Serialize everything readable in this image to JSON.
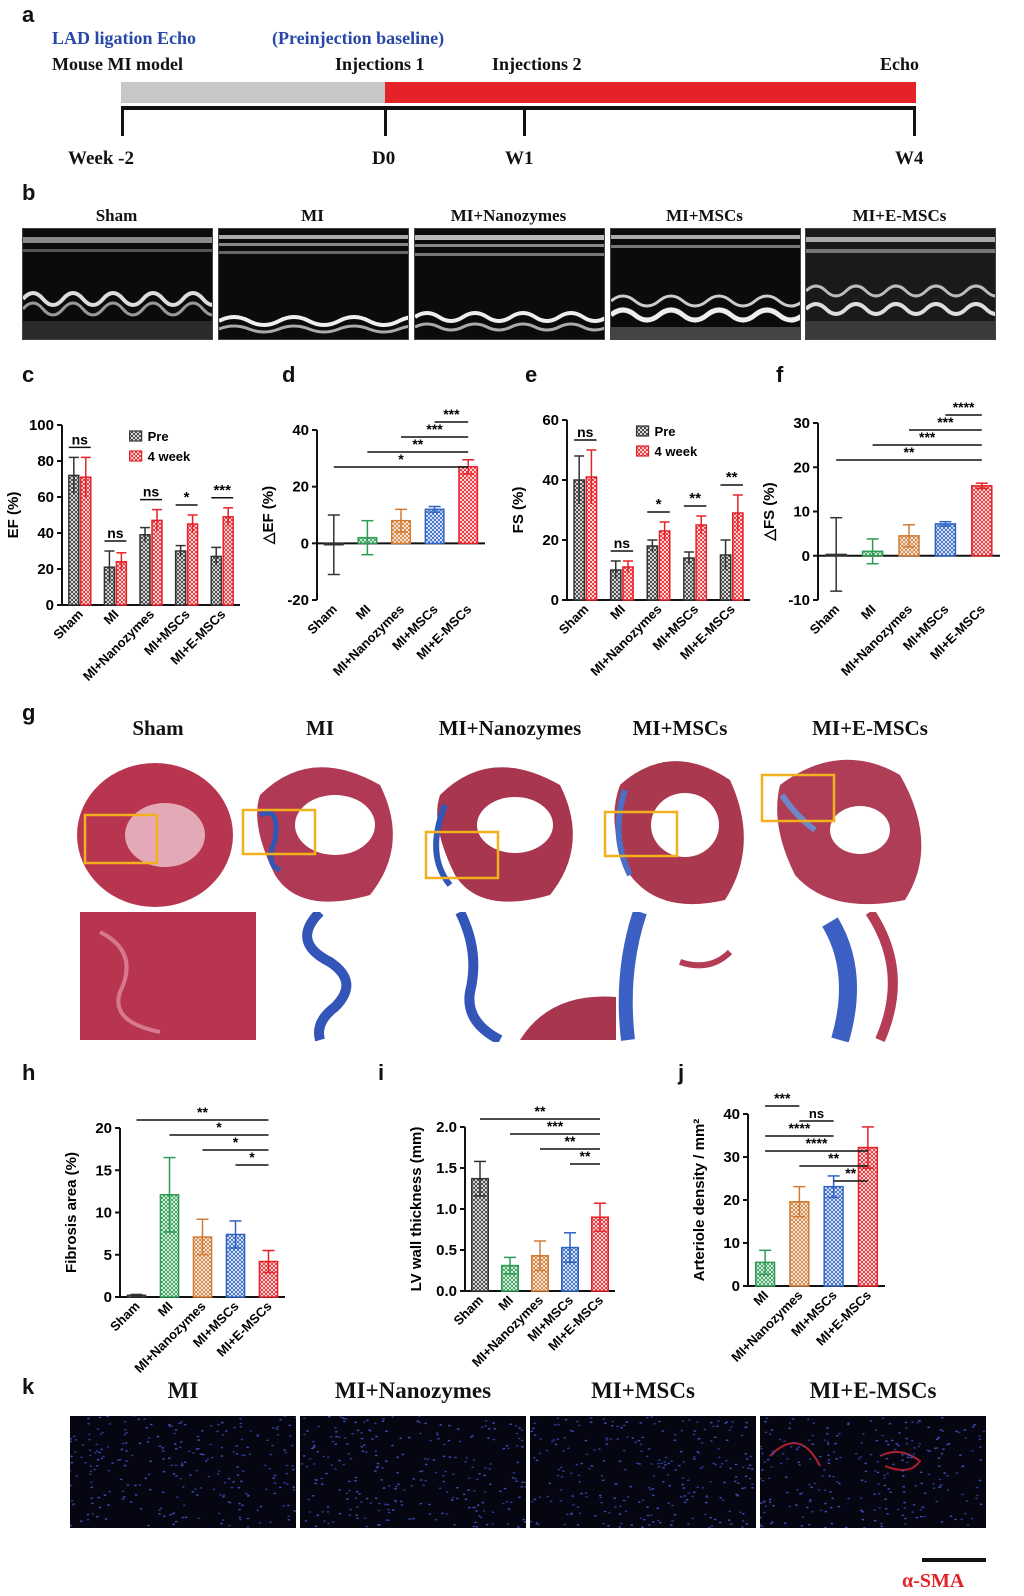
{
  "panel_labels": {
    "a": "a",
    "b": "b",
    "c": "c",
    "d": "d",
    "e": "e",
    "f": "f",
    "g": "g",
    "h": "h",
    "i": "i",
    "j": "j",
    "k": "k"
  },
  "timeline": {
    "top_blue_left": "LAD ligation Echo",
    "top_blue_mid": "(Preinjection baseline)",
    "lbl_model": "Mouse MI model",
    "lbl_inj1": "Injections 1",
    "lbl_inj2": "Injections 2",
    "lbl_echo": "Echo",
    "ticks": [
      "Week -2",
      "D0",
      "W1",
      "W4"
    ],
    "colors": {
      "gray": "#c8c8c8",
      "red": "#e52228"
    }
  },
  "groups5": [
    "Sham",
    "MI",
    "MI+Nanozymes",
    "MI+MSCs",
    "MI+E-MSCs"
  ],
  "groups4": [
    "MI",
    "MI+Nanozymes",
    "MI+MSCs",
    "MI+E-MSCs"
  ],
  "stain_label": "α-SMA",
  "chart_data": [
    {
      "id": "c",
      "type": "bar",
      "categories": [
        "Sham",
        "MI",
        "MI+Nanozymes",
        "MI+MSCs",
        "MI+E-MSCs"
      ],
      "series": [
        {
          "name": "Pre",
          "values": [
            72,
            21,
            39,
            30,
            27
          ],
          "errors": [
            10,
            9,
            4,
            3,
            5
          ],
          "color": "#333333"
        },
        {
          "name": "4 week",
          "values": [
            71,
            24,
            47,
            45,
            49
          ],
          "errors": [
            11,
            5,
            6,
            5,
            5
          ],
          "color": "#e52228"
        }
      ],
      "ylabel": "EF (%)",
      "ylim": [
        0,
        100
      ],
      "yticks": [
        0,
        20,
        40,
        60,
        80,
        100
      ],
      "legend": "top-right",
      "annotations": [
        {
          "text": "ns",
          "cat": 0
        },
        {
          "text": "ns",
          "cat": 1
        },
        {
          "text": "ns",
          "cat": 2
        },
        {
          "text": "*",
          "cat": 3
        },
        {
          "text": "***",
          "cat": 4
        }
      ]
    },
    {
      "id": "d",
      "type": "bar",
      "categories": [
        "Sham",
        "MI",
        "MI+Nanozymes",
        "MI+MSCs",
        "MI+E-MSCs"
      ],
      "values": [
        -0.5,
        2,
        8,
        12,
        27
      ],
      "errors": [
        10.5,
        6,
        4,
        1,
        2.5
      ],
      "colors": [
        "#333333",
        "#2e9b53",
        "#d27b35",
        "#2e63c4",
        "#e52228"
      ],
      "ylabel": "△EF (%)",
      "ylim": [
        -20,
        40
      ],
      "yticks": [
        -20,
        0,
        20,
        40
      ],
      "annotations": [
        {
          "text": "***",
          "from": 3,
          "to": 4
        },
        {
          "text": "***",
          "from": 2,
          "to": 4
        },
        {
          "text": "**",
          "from": 1,
          "to": 4
        },
        {
          "text": "*",
          "from": 0,
          "to": 4
        }
      ]
    },
    {
      "id": "e",
      "type": "bar",
      "categories": [
        "Sham",
        "MI",
        "MI+Nanozymes",
        "MI+MSCs",
        "MI+E-MSCs"
      ],
      "series": [
        {
          "name": "Pre",
          "values": [
            40,
            10,
            18,
            14,
            15
          ],
          "errors": [
            8,
            3,
            2,
            2,
            5
          ],
          "color": "#333333"
        },
        {
          "name": "4 week",
          "values": [
            41,
            11,
            23,
            25,
            29
          ],
          "errors": [
            9,
            2,
            3,
            3,
            6
          ],
          "color": "#e52228"
        }
      ],
      "ylabel": "FS (%)",
      "ylim": [
        0,
        60
      ],
      "yticks": [
        0,
        20,
        40,
        60
      ],
      "legend": "top-right",
      "annotations": [
        {
          "text": "ns",
          "cat": 0
        },
        {
          "text": "ns",
          "cat": 1
        },
        {
          "text": "*",
          "cat": 2
        },
        {
          "text": "**",
          "cat": 3
        },
        {
          "text": "**",
          "cat": 4
        }
      ]
    },
    {
      "id": "f",
      "type": "bar",
      "categories": [
        "Sham",
        "MI",
        "MI+Nanozymes",
        "MI+MSCs",
        "MI+E-MSCs"
      ],
      "values": [
        0.3,
        1,
        4.5,
        7.2,
        15.8
      ],
      "errors": [
        8.3,
        2.8,
        2.5,
        0.5,
        0.6
      ],
      "colors": [
        "#333333",
        "#2e9b53",
        "#d27b35",
        "#2e63c4",
        "#e52228"
      ],
      "ylabel": "△FS (%)",
      "ylim": [
        -10,
        30
      ],
      "yticks": [
        -10,
        0,
        10,
        20,
        30
      ],
      "annotations": [
        {
          "text": "****",
          "from": 3,
          "to": 4
        },
        {
          "text": "***",
          "from": 2,
          "to": 4
        },
        {
          "text": "***",
          "from": 1,
          "to": 4
        },
        {
          "text": "**",
          "from": 0,
          "to": 4
        }
      ]
    },
    {
      "id": "h",
      "type": "bar",
      "categories": [
        "Sham",
        "MI",
        "MI+Nanozymes",
        "MI+MSCs",
        "MI+E-MSCs"
      ],
      "values": [
        0.2,
        12.1,
        7.1,
        7.4,
        4.2
      ],
      "errors": [
        0.1,
        4.4,
        2.1,
        1.6,
        1.3
      ],
      "colors": [
        "#333333",
        "#2e9b53",
        "#d27b35",
        "#2e63c4",
        "#e52228"
      ],
      "ylabel": "Fibrosis area (%)",
      "ylim": [
        0,
        20
      ],
      "yticks": [
        0,
        5,
        10,
        15,
        20
      ],
      "annotations": [
        {
          "text": "**",
          "from": 0,
          "to": 4
        },
        {
          "text": "*",
          "from": 1,
          "to": 4
        },
        {
          "text": "*",
          "from": 2,
          "to": 4
        },
        {
          "text": "*",
          "from": 3,
          "to": 4
        }
      ]
    },
    {
      "id": "i",
      "type": "bar",
      "categories": [
        "Sham",
        "MI",
        "MI+Nanozymes",
        "MI+MSCs",
        "MI+E-MSCs"
      ],
      "values": [
        1.37,
        0.31,
        0.43,
        0.53,
        0.9
      ],
      "errors": [
        0.21,
        0.1,
        0.18,
        0.18,
        0.17
      ],
      "colors": [
        "#333333",
        "#2e9b53",
        "#d27b35",
        "#2e63c4",
        "#e52228"
      ],
      "ylabel": "LV wall thickness (mm)",
      "ylim": [
        0,
        2
      ],
      "yticks": [
        0.0,
        0.5,
        1.0,
        1.5,
        2.0
      ],
      "annotations": [
        {
          "text": "**",
          "from": 0,
          "to": 4
        },
        {
          "text": "***",
          "from": 1,
          "to": 4
        },
        {
          "text": "**",
          "from": 2,
          "to": 4
        },
        {
          "text": "**",
          "from": 3,
          "to": 4
        }
      ]
    },
    {
      "id": "j",
      "type": "bar",
      "categories": [
        "MI",
        "MI+Nanozymes",
        "MI+MSCs",
        "MI+E-MSCs"
      ],
      "values": [
        5.5,
        19.6,
        23.1,
        32.2
      ],
      "errors": [
        2.8,
        3.5,
        2.5,
        4.8
      ],
      "colors": [
        "#2e9b53",
        "#d27b35",
        "#2e63c4",
        "#e52228"
      ],
      "ylabel": "Arteriole density / mm²",
      "ylim": [
        0,
        40
      ],
      "yticks": [
        0,
        10,
        20,
        30,
        40
      ],
      "annotations": [
        {
          "text": "***",
          "from": 0,
          "to": 1
        },
        {
          "text": "ns",
          "from": 1,
          "to": 2
        },
        {
          "text": "****",
          "from": 0,
          "to": 2
        },
        {
          "text": "****",
          "from": 0,
          "to": 3
        },
        {
          "text": "**",
          "from": 1,
          "to": 3
        },
        {
          "text": "**",
          "from": 2,
          "to": 3
        }
      ]
    }
  ]
}
